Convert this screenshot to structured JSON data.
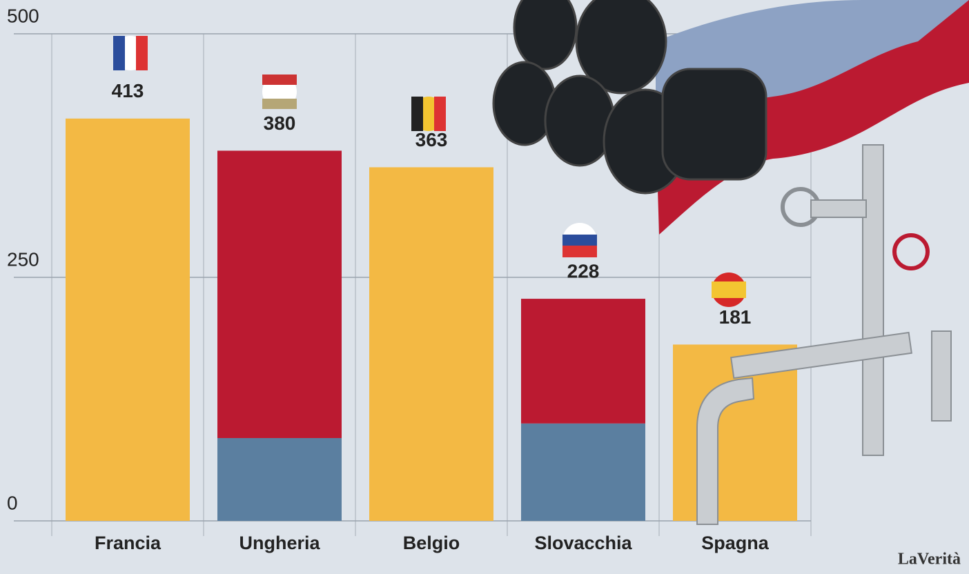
{
  "chart_data": {
    "type": "bar",
    "categories": [
      "Francia",
      "Ungheria",
      "Belgio",
      "Slovacchia",
      "Spagna"
    ],
    "series": [
      {
        "color": "#5b7fa0",
        "values": [
          null,
          85,
          null,
          100,
          null
        ]
      },
      {
        "color": "#bb1a31",
        "values": [
          null,
          295,
          null,
          128,
          null
        ]
      },
      {
        "color": "#f3b944",
        "values": [
          413,
          null,
          363,
          null,
          181
        ]
      }
    ],
    "totals": [
      413,
      380,
      363,
      228,
      181
    ],
    "ylim": [
      0,
      500
    ],
    "yticks": [
      0,
      250,
      500
    ],
    "grid": true,
    "source": "LaVerità"
  }
}
